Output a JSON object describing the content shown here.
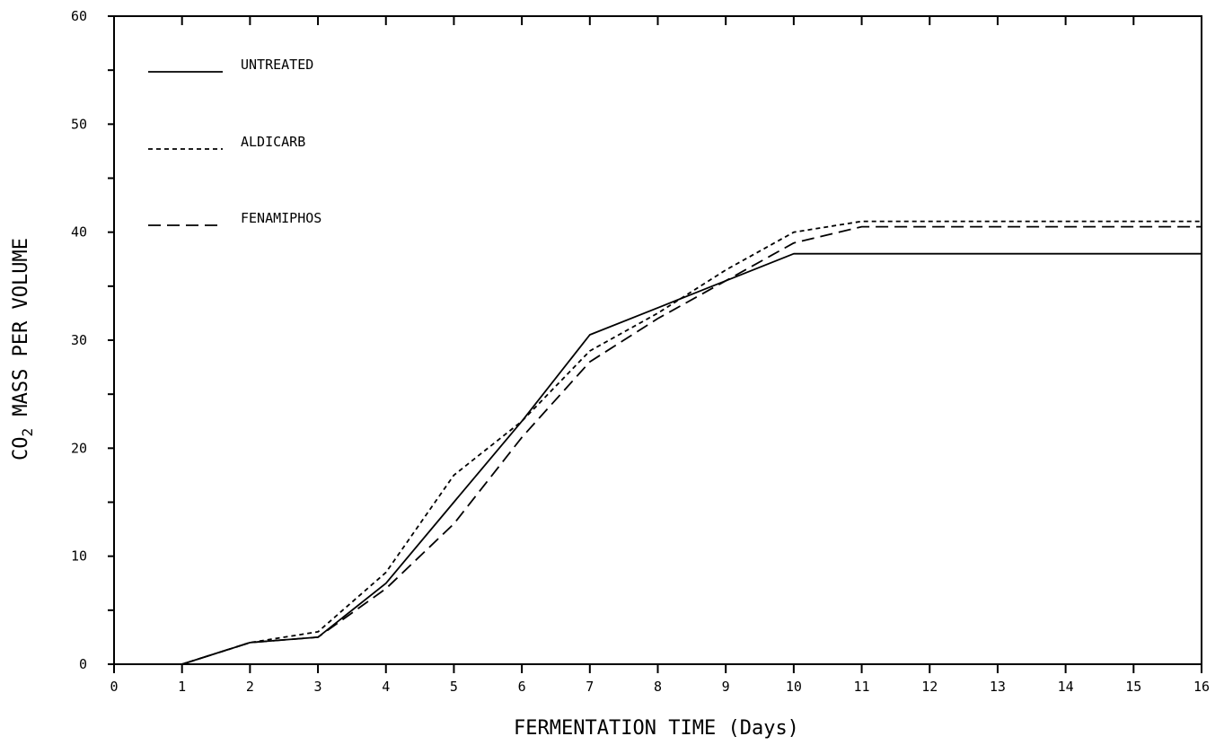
{
  "chart_data": {
    "type": "line",
    "title": "",
    "xlabel": "FERMENTATION TIME  (Days)",
    "ylabel_main": "CO",
    "ylabel_sub": "2",
    "ylabel_rest": " MASS PER VOLUME",
    "xlim": [
      0,
      16
    ],
    "ylim": [
      0,
      60
    ],
    "x_ticks": [
      0,
      1,
      2,
      3,
      4,
      5,
      6,
      7,
      8,
      9,
      10,
      11,
      12,
      13,
      14,
      15,
      16
    ],
    "y_ticks": [
      0,
      10,
      20,
      30,
      40,
      50,
      60
    ],
    "grid": false,
    "legend_position": "top-left",
    "series": [
      {
        "name": "UNTREATED",
        "style": "solid",
        "x": [
          1,
          2,
          3,
          4,
          5,
          6,
          7,
          8,
          9,
          10,
          11,
          16
        ],
        "y": [
          0,
          2,
          2.5,
          7.5,
          15,
          22.5,
          30.5,
          33,
          35.5,
          38,
          38,
          38
        ]
      },
      {
        "name": "ALDICARB",
        "style": "dotted",
        "x": [
          1,
          2,
          3,
          4,
          5,
          6,
          7,
          8,
          9,
          10,
          11,
          16
        ],
        "y": [
          0,
          2,
          3,
          8.5,
          17.5,
          22.5,
          29,
          32.5,
          36.5,
          40,
          41,
          41
        ]
      },
      {
        "name": "FENAMIPHOS",
        "style": "dashed",
        "x": [
          1,
          2,
          3,
          4,
          5,
          6,
          7,
          8,
          9,
          10,
          11,
          16
        ],
        "y": [
          0,
          2,
          2.5,
          7,
          13,
          21,
          28,
          32,
          35.5,
          39,
          40.5,
          40.5
        ]
      }
    ]
  }
}
